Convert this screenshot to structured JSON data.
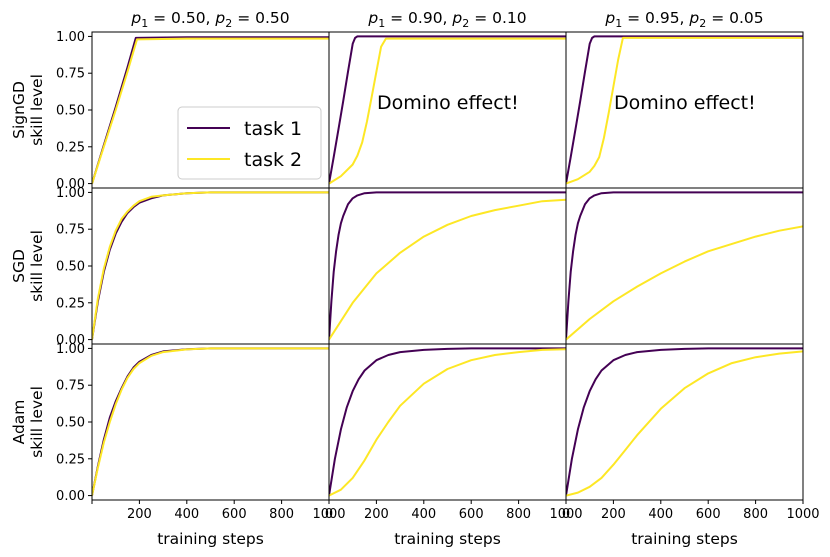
{
  "chart_data": {
    "type": "line",
    "layout": "3x3 grid",
    "column_titles": [
      {
        "p1": "0.50",
        "p2": "0.50"
      },
      {
        "p1": "0.90",
        "p2": "0.10"
      },
      {
        "p1": "0.95",
        "p2": "0.05"
      }
    ],
    "row_labels": [
      {
        "line1": "SignGD",
        "line2": "skill level"
      },
      {
        "line1": "SGD",
        "line2": "skill level"
      },
      {
        "line1": "Adam",
        "line2": "skill level"
      }
    ],
    "xlabel": "training steps",
    "xlim": [
      0,
      1000
    ],
    "ylim": [
      -0.03,
      1.03
    ],
    "x_ticks": [
      [
        "",
        "200",
        "400",
        "600",
        "800",
        "1000"
      ],
      [
        "0",
        "200",
        "400",
        "600",
        "800",
        "1000"
      ],
      [
        "0",
        "200",
        "400",
        "600",
        "800",
        "1000"
      ]
    ],
    "y_ticks": [
      "0.00",
      "0.25",
      "0.50",
      "0.75",
      "1.00"
    ],
    "legend": {
      "position": "center-right of top-left panel",
      "entries": [
        {
          "label": "task 1",
          "color": "#440154"
        },
        {
          "label": "task 2",
          "color": "#fde725"
        }
      ]
    },
    "annotations": [
      {
        "row": 0,
        "col": 1,
        "text": "Domino effect!"
      },
      {
        "row": 0,
        "col": 2,
        "text": "Domino effect!"
      }
    ],
    "panels": [
      {
        "row": 0,
        "col": 0,
        "series": [
          {
            "name": "task 1",
            "x": [
              0,
              50,
              100,
              150,
              185,
              400,
              600,
              800,
              1000
            ],
            "y": [
              0.0,
              0.26,
              0.52,
              0.79,
              0.99,
              0.995,
              0.995,
              0.995,
              0.995
            ]
          },
          {
            "name": "task 2",
            "x": [
              0,
              50,
              100,
              150,
              190,
              400,
              600,
              800,
              1000
            ],
            "y": [
              0.0,
              0.25,
              0.5,
              0.76,
              0.98,
              0.985,
              0.985,
              0.985,
              0.985
            ]
          }
        ]
      },
      {
        "row": 0,
        "col": 1,
        "series": [
          {
            "name": "task 1",
            "x": [
              0,
              20,
              40,
              60,
              80,
              100,
              110,
              120,
              140,
              1000
            ],
            "y": [
              0.0,
              0.18,
              0.37,
              0.56,
              0.76,
              0.95,
              0.99,
              1.0,
              1.0,
              1.0
            ]
          },
          {
            "name": "task 2",
            "x": [
              0,
              50,
              100,
              120,
              140,
              160,
              180,
              200,
              220,
              240,
              300,
              1000
            ],
            "y": [
              0.0,
              0.05,
              0.13,
              0.19,
              0.28,
              0.42,
              0.59,
              0.76,
              0.93,
              0.985,
              0.985,
              0.985
            ]
          }
        ]
      },
      {
        "row": 0,
        "col": 2,
        "series": [
          {
            "name": "task 1",
            "x": [
              0,
              20,
              40,
              60,
              80,
              100,
              110,
              120,
              140,
              1000
            ],
            "y": [
              0.0,
              0.18,
              0.37,
              0.56,
              0.76,
              0.95,
              0.99,
              1.0,
              1.0,
              1.0
            ]
          },
          {
            "name": "task 2",
            "x": [
              0,
              50,
              100,
              120,
              140,
              160,
              180,
              200,
              220,
              240,
              260,
              1000
            ],
            "y": [
              0.0,
              0.03,
              0.08,
              0.12,
              0.18,
              0.31,
              0.48,
              0.66,
              0.84,
              0.99,
              0.99,
              0.99
            ]
          }
        ]
      },
      {
        "row": 1,
        "col": 0,
        "series": [
          {
            "name": "task 1",
            "x": [
              0,
              25,
              50,
              75,
              100,
              125,
              150,
              175,
              200,
              250,
              300,
              400,
              500,
              600,
              800,
              1000
            ],
            "y": [
              0.0,
              0.26,
              0.46,
              0.61,
              0.72,
              0.8,
              0.86,
              0.9,
              0.93,
              0.96,
              0.98,
              0.995,
              1.0,
              1.0,
              1.0,
              1.0
            ]
          },
          {
            "name": "task 2",
            "x": [
              0,
              25,
              50,
              75,
              100,
              125,
              150,
              175,
              200,
              250,
              300,
              400,
              500,
              600,
              800,
              1000
            ],
            "y": [
              0.0,
              0.28,
              0.48,
              0.63,
              0.74,
              0.82,
              0.87,
              0.91,
              0.94,
              0.97,
              0.98,
              0.995,
              1.0,
              1.0,
              1.0,
              1.0
            ]
          }
        ]
      },
      {
        "row": 1,
        "col": 1,
        "series": [
          {
            "name": "task 1",
            "x": [
              0,
              10,
              20,
              30,
              40,
              50,
              60,
              80,
              100,
              120,
              150,
              200,
              300,
              1000
            ],
            "y": [
              0.0,
              0.26,
              0.46,
              0.6,
              0.71,
              0.79,
              0.84,
              0.92,
              0.96,
              0.98,
              0.995,
              1.0,
              1.0,
              1.0
            ]
          },
          {
            "name": "task 2",
            "x": [
              0,
              100,
              200,
              300,
              400,
              500,
              600,
              700,
              800,
              900,
              1000
            ],
            "y": [
              0.0,
              0.25,
              0.45,
              0.59,
              0.7,
              0.78,
              0.84,
              0.88,
              0.91,
              0.94,
              0.95
            ]
          }
        ]
      },
      {
        "row": 1,
        "col": 2,
        "series": [
          {
            "name": "task 1",
            "x": [
              0,
              10,
              20,
              30,
              40,
              50,
              60,
              80,
              100,
              120,
              150,
              200,
              300,
              1000
            ],
            "y": [
              0.0,
              0.26,
              0.46,
              0.6,
              0.71,
              0.79,
              0.84,
              0.92,
              0.96,
              0.98,
              0.995,
              1.0,
              1.0,
              1.0
            ]
          },
          {
            "name": "task 2",
            "x": [
              0,
              100,
              200,
              300,
              400,
              500,
              600,
              700,
              800,
              900,
              1000
            ],
            "y": [
              0.0,
              0.14,
              0.26,
              0.36,
              0.45,
              0.53,
              0.6,
              0.65,
              0.7,
              0.74,
              0.77
            ]
          }
        ]
      },
      {
        "row": 2,
        "col": 0,
        "series": [
          {
            "name": "task 1",
            "x": [
              0,
              25,
              50,
              75,
              100,
              125,
              150,
              175,
              200,
              250,
              300,
              400,
              500,
              600,
              800,
              1000
            ],
            "y": [
              0.0,
              0.2,
              0.38,
              0.53,
              0.64,
              0.73,
              0.81,
              0.87,
              0.91,
              0.955,
              0.98,
              0.995,
              1.0,
              1.0,
              1.0,
              1.0
            ]
          },
          {
            "name": "task 2",
            "x": [
              0,
              25,
              50,
              75,
              100,
              125,
              150,
              175,
              200,
              250,
              300,
              400,
              500,
              600,
              800,
              1000
            ],
            "y": [
              0.0,
              0.19,
              0.36,
              0.5,
              0.62,
              0.72,
              0.8,
              0.86,
              0.9,
              0.95,
              0.975,
              0.993,
              1.0,
              1.0,
              1.0,
              1.0
            ]
          }
        ]
      },
      {
        "row": 2,
        "col": 1,
        "series": [
          {
            "name": "task 1",
            "x": [
              0,
              25,
              50,
              75,
              100,
              125,
              150,
              200,
              250,
              300,
              400,
              500,
              600,
              800,
              1000
            ],
            "y": [
              0.0,
              0.25,
              0.45,
              0.6,
              0.71,
              0.79,
              0.85,
              0.92,
              0.955,
              0.975,
              0.99,
              0.997,
              1.0,
              1.0,
              1.0
            ]
          },
          {
            "name": "task 2",
            "x": [
              0,
              50,
              100,
              150,
              200,
              250,
              300,
              400,
              500,
              600,
              700,
              800,
              900,
              1000
            ],
            "y": [
              0.0,
              0.04,
              0.12,
              0.24,
              0.38,
              0.5,
              0.61,
              0.76,
              0.86,
              0.92,
              0.955,
              0.975,
              0.99,
              0.995
            ]
          }
        ]
      },
      {
        "row": 2,
        "col": 2,
        "series": [
          {
            "name": "task 1",
            "x": [
              0,
              25,
              50,
              75,
              100,
              125,
              150,
              200,
              250,
              300,
              400,
              500,
              600,
              800,
              1000
            ],
            "y": [
              0.0,
              0.25,
              0.45,
              0.6,
              0.71,
              0.79,
              0.85,
              0.92,
              0.955,
              0.975,
              0.99,
              0.997,
              1.0,
              1.0,
              1.0
            ]
          },
          {
            "name": "task 2",
            "x": [
              0,
              50,
              100,
              150,
              200,
              250,
              300,
              400,
              500,
              600,
              700,
              800,
              900,
              1000
            ],
            "y": [
              0.0,
              0.02,
              0.06,
              0.12,
              0.21,
              0.31,
              0.41,
              0.59,
              0.73,
              0.83,
              0.9,
              0.94,
              0.965,
              0.98
            ]
          }
        ]
      }
    ]
  }
}
